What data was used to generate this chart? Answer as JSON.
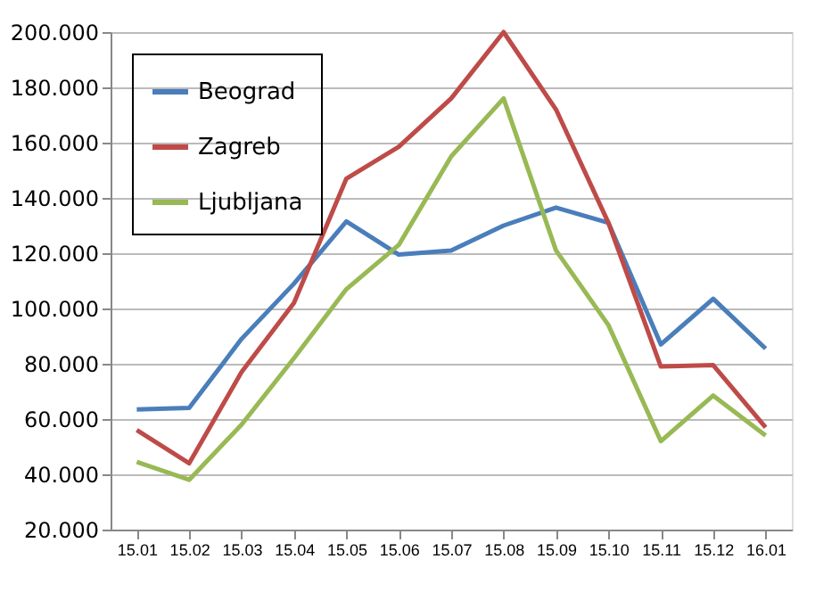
{
  "chart_data": {
    "type": "line",
    "categories": [
      "15.01",
      "15.02",
      "15.03",
      "15.04",
      "15.05",
      "15.06",
      "15.07",
      "15.08",
      "15.09",
      "15.10",
      "15.11",
      "15.12",
      "16.01"
    ],
    "series": [
      {
        "name": "Beograd",
        "color": "#4a7ebb",
        "values": [
          63.5,
          64,
          89,
          109,
          131.5,
          119.5,
          121,
          130,
          136.5,
          131,
          87,
          103.5,
          85.5
        ]
      },
      {
        "name": "Zagreb",
        "color": "#be4b48",
        "values": [
          56,
          44,
          77,
          102,
          147,
          158.5,
          176,
          200,
          172,
          131,
          79,
          79.5,
          57
        ]
      },
      {
        "name": "Ljubljana",
        "color": "#98b954",
        "values": [
          44.5,
          38,
          58,
          82,
          107,
          123,
          155,
          176,
          121,
          94,
          52,
          68.5,
          54
        ]
      }
    ],
    "ylim": [
      20,
      200
    ],
    "yticks": [
      {
        "value": 20,
        "label": "20.000"
      },
      {
        "value": 40,
        "label": "40.000"
      },
      {
        "value": 60,
        "label": "60.000"
      },
      {
        "value": 80,
        "label": "80.000"
      },
      {
        "value": 100,
        "label": "100.000"
      },
      {
        "value": 120,
        "label": "120.000"
      },
      {
        "value": 140,
        "label": "140.000"
      },
      {
        "value": 160,
        "label": "160.000"
      },
      {
        "value": 180,
        "label": "180.000"
      },
      {
        "value": 200,
        "label": "200.000"
      }
    ],
    "grid": "y",
    "legend": "top left",
    "marker": "none",
    "line_style": "solid"
  }
}
